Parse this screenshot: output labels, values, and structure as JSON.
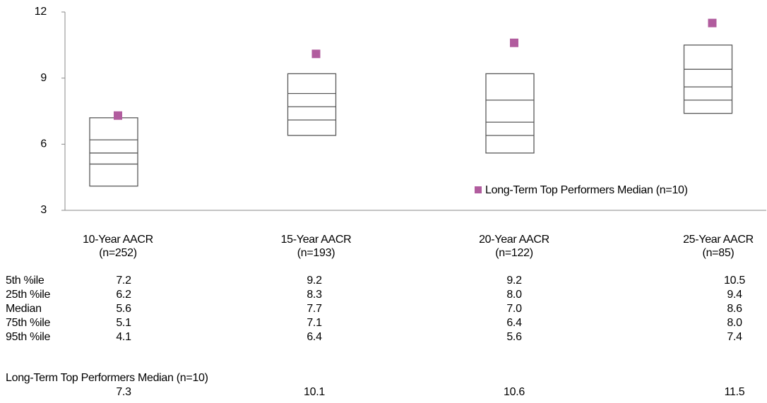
{
  "chart_data": {
    "type": "percentile-box",
    "categories": [
      "10-Year AACR",
      "15-Year AACR",
      "20-Year AACR",
      "25-Year AACR"
    ],
    "category_counts": [
      "(n=252)",
      "(n=193)",
      "(n=122)",
      "(n=85)"
    ],
    "ylim": [
      3,
      12
    ],
    "yticks": [
      3,
      6,
      9,
      12
    ],
    "box_color": "#595959",
    "legend": "lower right",
    "series": [
      {
        "name": "5th %ile",
        "values": [
          7.2,
          9.2,
          9.2,
          10.5
        ],
        "value_labels": [
          "7.2",
          "9.2",
          "9.2",
          "10.5"
        ]
      },
      {
        "name": "25th %ile",
        "values": [
          6.2,
          8.3,
          8.0,
          9.4
        ],
        "value_labels": [
          "6.2",
          "8.3",
          "8.0",
          "9.4"
        ]
      },
      {
        "name": "Median",
        "values": [
          5.6,
          7.7,
          7.0,
          8.6
        ],
        "value_labels": [
          "5.6",
          "7.7",
          "7.0",
          "8.6"
        ]
      },
      {
        "name": "75th %ile",
        "values": [
          5.1,
          7.1,
          6.4,
          8.0
        ],
        "value_labels": [
          "5.1",
          "7.1",
          "6.4",
          "8.0"
        ]
      },
      {
        "name": "95th %ile",
        "values": [
          4.1,
          6.4,
          5.6,
          7.4
        ],
        "value_labels": [
          "4.1",
          "6.4",
          "5.6",
          "7.4"
        ]
      },
      {
        "name": "Long-Term Top Performers Median (n=10)",
        "color": "#b15c9e",
        "values": [
          7.3,
          10.1,
          10.6,
          11.5
        ],
        "value_labels": [
          "7.3",
          "10.1",
          "10.6",
          "11.5"
        ]
      }
    ]
  }
}
